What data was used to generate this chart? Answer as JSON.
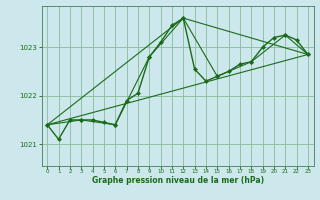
{
  "xlabel": "Graphe pression niveau de la mer (hPa)",
  "bg_color": "#cce8ec",
  "grid_color": "#88bb99",
  "line_color": "#1a6b1a",
  "spine_color": "#4a7a5a",
  "xlim": [
    -0.5,
    23.5
  ],
  "ylim": [
    1020.55,
    1023.85
  ],
  "yticks": [
    1021,
    1022,
    1023
  ],
  "xticks": [
    0,
    1,
    2,
    3,
    4,
    5,
    6,
    7,
    8,
    9,
    10,
    11,
    12,
    13,
    14,
    15,
    16,
    17,
    18,
    19,
    20,
    21,
    22,
    23
  ],
  "series": [
    {
      "x": [
        0,
        1,
        2,
        3,
        4,
        5,
        6,
        7,
        8,
        9,
        10,
        11,
        12,
        13,
        14,
        15,
        16,
        17,
        18,
        19,
        20,
        21,
        22,
        23
      ],
      "y": [
        1021.4,
        1021.1,
        1021.5,
        1021.5,
        1021.5,
        1021.45,
        1021.4,
        1021.9,
        1022.05,
        1022.8,
        1023.1,
        1023.45,
        1023.6,
        1022.55,
        1022.3,
        1022.4,
        1022.5,
        1022.65,
        1022.7,
        1023.0,
        1023.2,
        1023.25,
        1023.15,
        1022.85
      ],
      "marker": true,
      "linewidth": 1.0
    },
    {
      "x": [
        0,
        3,
        6,
        9,
        12,
        15,
        18,
        21,
        23
      ],
      "y": [
        1021.4,
        1021.5,
        1021.4,
        1022.8,
        1023.6,
        1022.4,
        1022.7,
        1023.25,
        1022.85
      ],
      "marker": true,
      "linewidth": 0.8
    },
    {
      "x": [
        0,
        23
      ],
      "y": [
        1021.4,
        1022.85
      ],
      "marker": false,
      "linewidth": 0.8
    },
    {
      "x": [
        0,
        12,
        23
      ],
      "y": [
        1021.4,
        1023.6,
        1022.85
      ],
      "marker": false,
      "linewidth": 0.8
    }
  ]
}
